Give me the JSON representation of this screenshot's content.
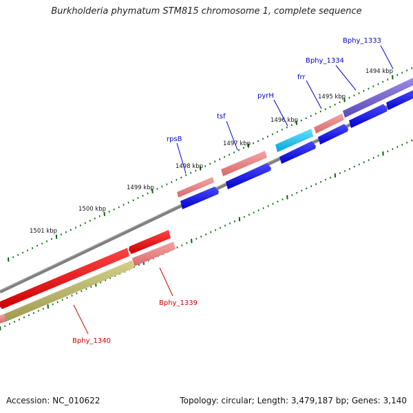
{
  "header": {
    "title": "Burkholderia phymatum STM815 chromosome 1, complete sequence"
  },
  "footer": {
    "accession": "Accession: NC_010622",
    "summary": "Topology: circular; Length: 3,479,187 bp; Genes: 3,140"
  },
  "map": {
    "tick_labels": [
      "1494 kbp",
      "1495 kbp",
      "1496 kbp",
      "1497 kbp",
      "1498 kbp",
      "1499 kbp",
      "1500 kbp",
      "1501 kbp"
    ],
    "genes": [
      {
        "id": "bphy1333",
        "label": "Bphy_1333",
        "strand": "forward",
        "color": "#7a6ad8"
      },
      {
        "id": "bphy1334",
        "label": "Bphy_1334",
        "strand": "forward",
        "color": "#0000ee"
      },
      {
        "id": "frr",
        "label": "frr",
        "strand": "forward",
        "color": "#0000ee"
      },
      {
        "id": "pyrH",
        "label": "pyrH",
        "strand": "forward",
        "color": "#22c4ee"
      },
      {
        "id": "tsf",
        "label": "tsf",
        "strand": "forward",
        "color": "#0000ee"
      },
      {
        "id": "rpsB",
        "label": "rpsB",
        "strand": "forward",
        "color": "#0000ee"
      },
      {
        "id": "bphy1339",
        "label": "Bphy_1339",
        "strand": "reverse",
        "color": "#ee1111"
      },
      {
        "id": "bphy1340",
        "label": "Bphy_1340",
        "strand": "reverse",
        "color": "#ee1111"
      }
    ],
    "label_colors": {
      "forward": "#0000cc",
      "reverse": "#cc0000"
    },
    "backbone_color": "#808080",
    "tick_color": "#006600",
    "pink_color": "#ee8888",
    "olive_color": "#b8b46a"
  }
}
